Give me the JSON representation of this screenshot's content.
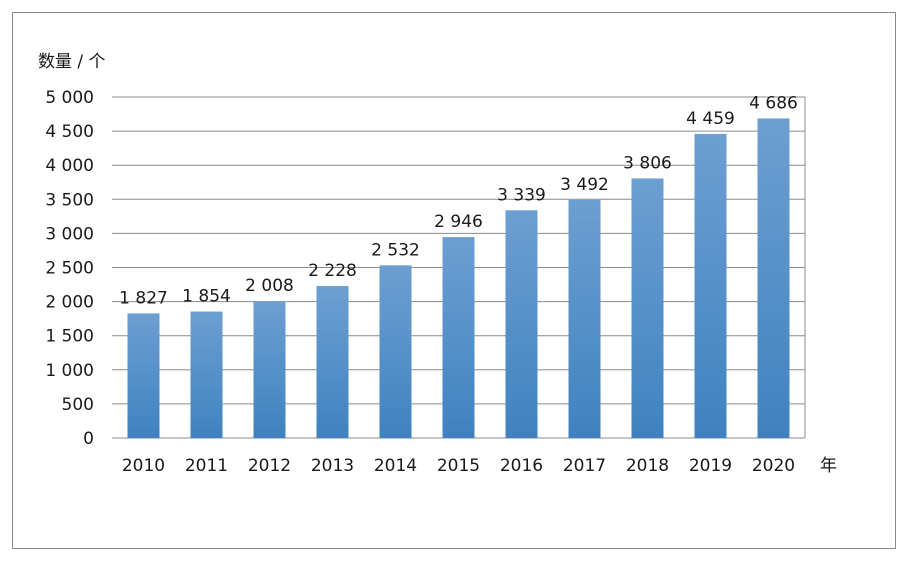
{
  "chart_data": {
    "type": "bar",
    "title": "",
    "ylabel": "数量 / 个",
    "xlabel": "年",
    "categories": [
      "2010",
      "2011",
      "2012",
      "2013",
      "2014",
      "2015",
      "2016",
      "2017",
      "2018",
      "2019",
      "2020"
    ],
    "values": [
      1827,
      1854,
      2008,
      2228,
      2532,
      2946,
      3339,
      3492,
      3806,
      4459,
      4686
    ],
    "value_labels": [
      "1 827",
      "1 854",
      "2 008",
      "2 228",
      "2 532",
      "2 946",
      "3 339",
      "3 492",
      "3 806",
      "4 459",
      "4 686"
    ],
    "ylim": [
      0,
      5000
    ],
    "yticks": [
      0,
      500,
      1000,
      1500,
      2000,
      2500,
      3000,
      3500,
      4000,
      4500,
      5000
    ],
    "ytick_labels": [
      "0",
      "500",
      "1 000",
      "1 500",
      "2 000",
      "2 500",
      "3 000",
      "3 500",
      "4 000",
      "4 500",
      "5 000"
    ],
    "grid": true,
    "legend": "none",
    "colors": {
      "bar_top": "#6d9fd1",
      "bar_bottom": "#3f82c0",
      "grid": "#8c8c8c"
    }
  }
}
